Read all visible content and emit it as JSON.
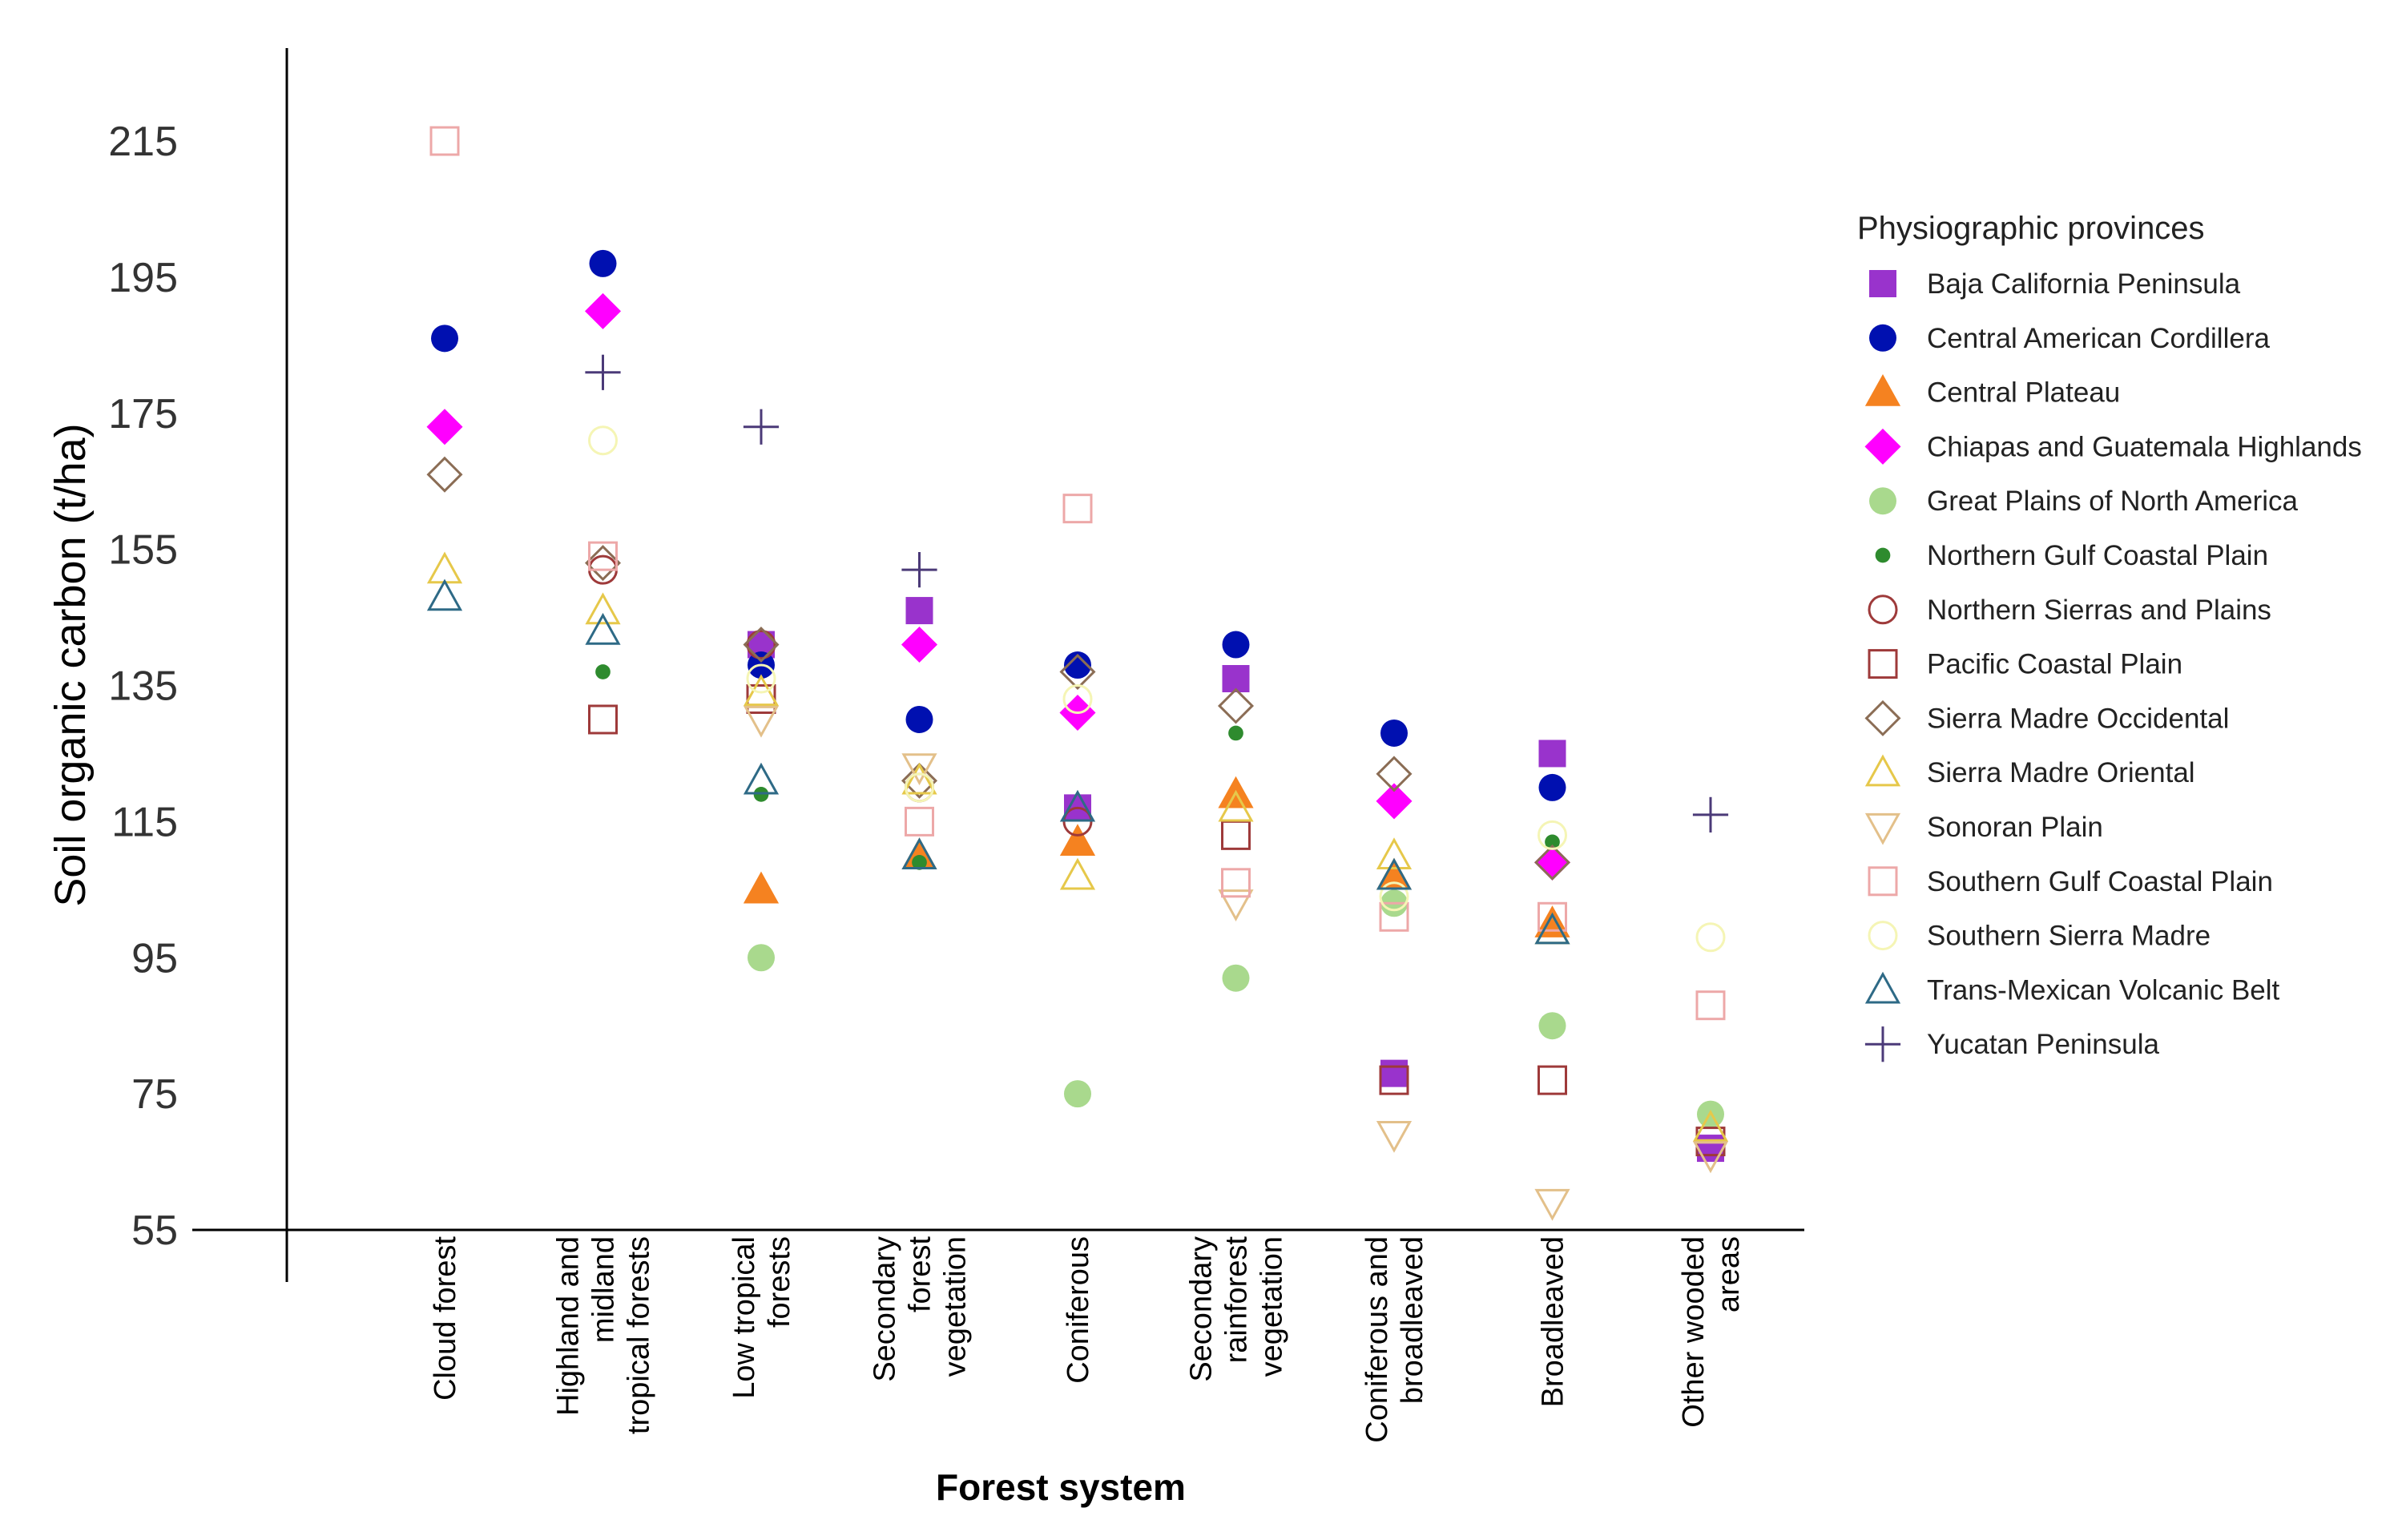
{
  "chart_data": {
    "type": "scatter",
    "title": "",
    "xlabel": "Forest system",
    "ylabel": "Soil organic carbon (t/ha)",
    "ylim": [
      55,
      230
    ],
    "yticks": [
      "215",
      "195",
      "175",
      "155",
      "135",
      "115",
      "95",
      "75",
      "55"
    ],
    "grid": false,
    "legend_title": "Physiographic provinces",
    "legend_position": "right",
    "categories": [
      [
        "Cloud forest"
      ],
      [
        "Highland and",
        "midland",
        "tropical forests"
      ],
      [
        "Low tropical",
        "forests"
      ],
      [
        "Secondary",
        "forest",
        "vegetation"
      ],
      [
        "Coniferous"
      ],
      [
        "Secondary",
        "rainforest",
        "vegetation"
      ],
      [
        "Coniferous and",
        "broadleaved"
      ],
      [
        "Broadleaved"
      ],
      [
        "Other wooded",
        "areas"
      ]
    ],
    "series": [
      {
        "name": "Baja California Peninsula",
        "marker": "square-filled",
        "color": "#9933cc",
        "values": [
          null,
          null,
          141,
          146,
          117,
          136,
          78,
          125,
          67
        ]
      },
      {
        "name": "Central American Cordillera",
        "marker": "circle-filled",
        "color": "#0010b0",
        "values": [
          186,
          197,
          138,
          130,
          138,
          141,
          128,
          120,
          null
        ]
      },
      {
        "name": "Central Plateau",
        "marker": "triangle-up-filled",
        "color": "#f58220",
        "values": [
          null,
          null,
          105,
          110,
          112,
          119,
          107,
          100,
          null
        ]
      },
      {
        "name": "Chiapas and Guatemala Highlands",
        "marker": "diamond-filled",
        "color": "#ff00ff",
        "values": [
          173,
          190,
          null,
          141,
          131,
          null,
          118,
          109,
          null
        ]
      },
      {
        "name": "Great Plains of North America",
        "marker": "circle-filled",
        "color": "#a9d98d",
        "values": [
          null,
          null,
          95,
          null,
          75,
          92,
          103,
          85,
          72
        ]
      },
      {
        "name": "Northern Gulf Coastal Plain",
        "marker": "dot-filled",
        "color": "#2e8b2e",
        "values": [
          null,
          137,
          119,
          109,
          null,
          128,
          null,
          112,
          null
        ]
      },
      {
        "name": "Northern Sierras and Plains",
        "marker": "circle-open",
        "color": "#9e3a3a",
        "values": [
          null,
          152,
          141,
          120,
          115,
          null,
          null,
          null,
          null
        ]
      },
      {
        "name": "Pacific Coastal Plain",
        "marker": "square-open",
        "color": "#9e3a3a",
        "values": [
          null,
          130,
          133,
          null,
          null,
          113,
          77,
          77,
          68
        ]
      },
      {
        "name": "Sierra Madre Occidental",
        "marker": "diamond-open",
        "color": "#8b6d55",
        "values": [
          166,
          153,
          141,
          121,
          137,
          132,
          122,
          109,
          null
        ]
      },
      {
        "name": "Sierra Madre Oriental",
        "marker": "triangle-up-open",
        "color": "#e6c84a",
        "values": [
          152,
          146,
          134,
          121,
          107,
          117,
          110,
          99,
          70
        ]
      },
      {
        "name": "Sonoran Plain",
        "marker": "triangle-down-open",
        "color": "#e3c08a",
        "values": [
          null,
          null,
          130,
          123,
          null,
          103,
          69,
          59,
          66
        ]
      },
      {
        "name": "Southern Gulf Coastal Plain",
        "marker": "square-open",
        "color": "#eda8a8",
        "values": [
          215,
          154,
          null,
          115,
          161,
          106,
          101,
          101,
          88
        ]
      },
      {
        "name": "Southern Sierra Madre",
        "marker": "circle-open",
        "color": "#f5f5b5",
        "values": [
          null,
          171,
          136,
          120,
          133,
          null,
          104,
          113,
          98
        ]
      },
      {
        "name": "Trans-Mexican Volcanic Belt",
        "marker": "triangle-up-open",
        "color": "#2e6a86",
        "values": [
          148,
          143,
          121,
          110,
          117,
          null,
          107,
          99,
          null
        ]
      },
      {
        "name": "Yucatan Peninsula",
        "marker": "plus",
        "color": "#4b3a78",
        "values": [
          null,
          181,
          173,
          152,
          null,
          null,
          null,
          null,
          116
        ]
      }
    ]
  }
}
